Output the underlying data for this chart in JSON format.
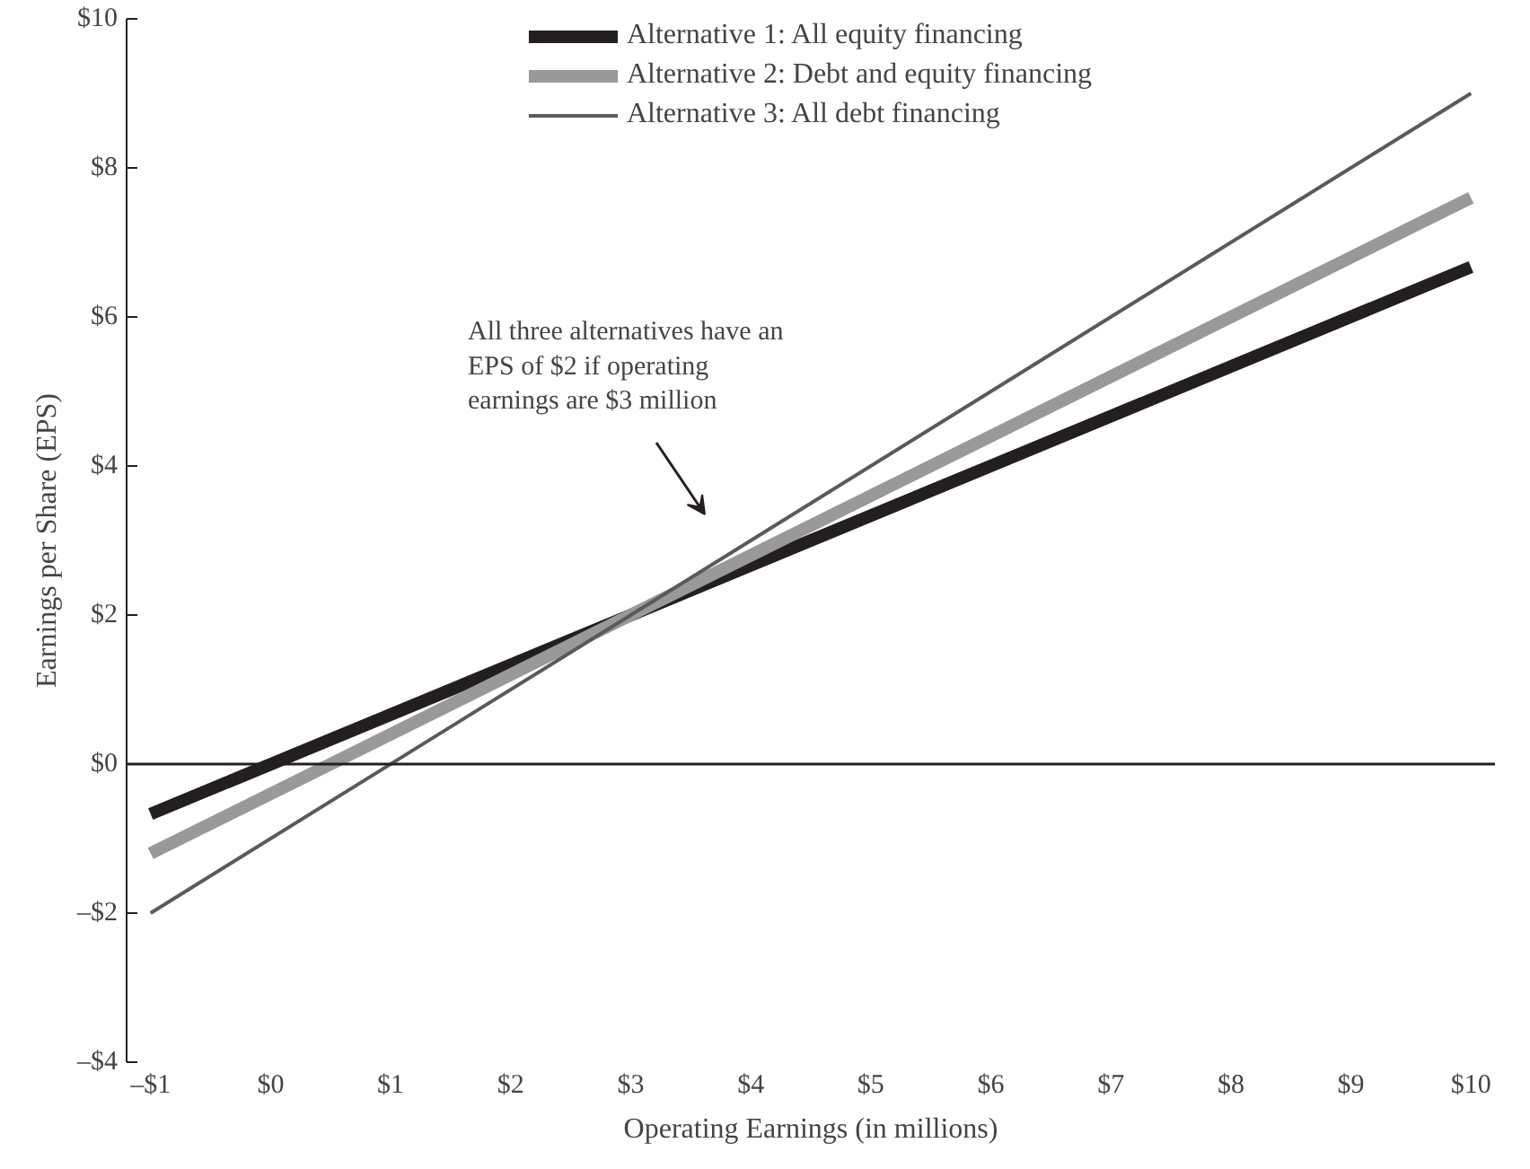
{
  "chart_data": {
    "type": "line",
    "xlabel": "Operating Earnings (in millions)",
    "ylabel": "Earnings per Share (EPS)",
    "x": [
      -1,
      10
    ],
    "series": [
      {
        "name": "Alternative 1: All equity financing",
        "color": "#231f20",
        "values": [
          -0.67,
          6.67
        ]
      },
      {
        "name": "Alternative 2: Debt and equity financing",
        "color": "#999999",
        "values": [
          -1.2,
          7.6
        ]
      },
      {
        "name": "Alternative 3: All debt financing",
        "color": "#5a5a5a",
        "values": [
          -2,
          9
        ]
      }
    ],
    "xlim": [
      -1.2,
      10.2
    ],
    "ylim": [
      -4,
      10
    ],
    "xticks": [
      {
        "value": -1,
        "label": "–$1"
      },
      {
        "value": 0,
        "label": "$0"
      },
      {
        "value": 1,
        "label": "$1"
      },
      {
        "value": 2,
        "label": "$2"
      },
      {
        "value": 3,
        "label": "$3"
      },
      {
        "value": 4,
        "label": "$4"
      },
      {
        "value": 5,
        "label": "$5"
      },
      {
        "value": 6,
        "label": "$6"
      },
      {
        "value": 7,
        "label": "$7"
      },
      {
        "value": 8,
        "label": "$8"
      },
      {
        "value": 9,
        "label": "$9"
      },
      {
        "value": 10,
        "label": "$10"
      }
    ],
    "yticks": [
      {
        "value": -4,
        "label": "–$4"
      },
      {
        "value": -2,
        "label": "–$2"
      },
      {
        "value": 0,
        "label": "$0"
      },
      {
        "value": 2,
        "label": "$2"
      },
      {
        "value": 4,
        "label": "$4"
      },
      {
        "value": 6,
        "label": "$6"
      },
      {
        "value": 8,
        "label": "$8"
      },
      {
        "value": 10,
        "label": "$10"
      }
    ],
    "ref_lines": [
      {
        "axis": "y",
        "value": 0,
        "color": "#231f20"
      }
    ],
    "annotations": [
      "All three alternatives have an\nEPS of $2 if operating\nearnings are $3 million"
    ],
    "grid": false,
    "legend": "top",
    "marker": "none",
    "line_style": "solid"
  }
}
